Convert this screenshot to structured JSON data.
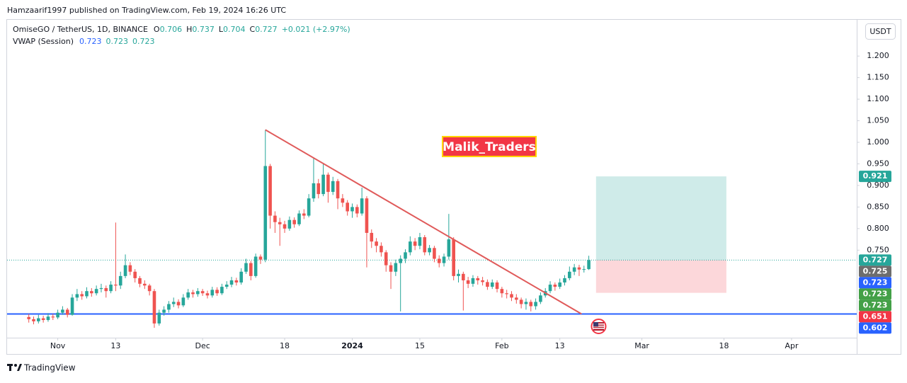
{
  "header": {
    "publisher": "Hamzaarif1997 published on TradingView.com, Feb 19, 2024 16:26 UTC",
    "symbol": "OmiseGO / TetherUS, 1D, BINANCE",
    "ohlc": [
      {
        "key": "O",
        "value": 0.706
      },
      {
        "key": "H",
        "value": 0.737
      },
      {
        "key": "L",
        "value": 0.704
      },
      {
        "key": "C",
        "value": 0.727
      }
    ],
    "change": "+0.021 (+2.97%)",
    "indicator": "VWAP (Session)",
    "indicator_values": [
      {
        "value": 0.723,
        "color": "#2962ff"
      },
      {
        "value": 0.723,
        "color": "#26a69a"
      },
      {
        "value": 0.723,
        "color": "#26a69a"
      }
    ],
    "currency": "USDT",
    "watermark": "Malik_Traders",
    "footer": "TradingView"
  },
  "chart_data": {
    "type": "candlestick",
    "up_color": "#26a69a",
    "down_color": "#ef5350",
    "xlim": [
      -4.5,
      171.5
    ],
    "xticks": [
      {
        "value": 6,
        "label": "Nov"
      },
      {
        "value": 18,
        "label": "13"
      },
      {
        "value": 36,
        "label": "Dec"
      },
      {
        "value": 53,
        "label": "18"
      },
      {
        "value": 67,
        "label": "2024"
      },
      {
        "value": 81,
        "label": "15"
      },
      {
        "value": 98,
        "label": "Feb"
      },
      {
        "value": 110,
        "label": "13"
      },
      {
        "value": 127,
        "label": "Mar"
      },
      {
        "value": 144,
        "label": "18"
      },
      {
        "value": 158,
        "label": "Apr"
      }
    ],
    "ylim": [
      0.547,
      1.284
    ],
    "yticks": [
      {
        "value": 0.75,
        "label": "0.750"
      },
      {
        "value": 0.8,
        "label": "0.800"
      },
      {
        "value": 0.85,
        "label": "0.850"
      },
      {
        "value": 0.9,
        "label": "0.900"
      },
      {
        "value": 0.95,
        "label": "0.950"
      },
      {
        "value": 1.0,
        "label": "1.000"
      },
      {
        "value": 1.05,
        "label": "1.050"
      },
      {
        "value": 1.1,
        "label": "1.100"
      },
      {
        "value": 1.15,
        "label": "1.150"
      },
      {
        "value": 1.2,
        "label": "1.200"
      }
    ],
    "open": [
      0.595,
      0.59,
      0.585,
      0.592,
      0.588,
      0.596,
      0.594,
      0.605,
      0.612,
      0.6,
      0.64,
      0.648,
      0.643,
      0.655,
      0.65,
      0.66,
      0.662,
      0.655,
      0.67,
      0.668,
      0.69,
      0.715,
      0.7,
      0.685,
      0.672,
      0.668,
      0.655,
      0.58,
      0.605,
      0.612,
      0.625,
      0.63,
      0.622,
      0.64,
      0.652,
      0.648,
      0.655,
      0.65,
      0.645,
      0.658,
      0.65,
      0.665,
      0.67,
      0.68,
      0.675,
      0.7,
      0.72,
      0.69,
      0.735,
      0.728,
      0.945,
      0.83,
      0.815,
      0.81,
      0.8,
      0.82,
      0.81,
      0.835,
      0.83,
      0.87,
      0.905,
      0.88,
      0.925,
      0.885,
      0.91,
      0.87,
      0.86,
      0.84,
      0.85,
      0.835,
      0.87,
      0.79,
      0.77,
      0.76,
      0.745,
      0.715,
      0.7,
      0.72,
      0.73,
      0.745,
      0.77,
      0.76,
      0.78,
      0.745,
      0.755,
      0.73,
      0.72,
      0.735,
      0.775,
      0.69,
      0.695,
      0.68,
      0.672,
      0.685,
      0.68,
      0.676,
      0.665,
      0.675,
      0.66,
      0.65,
      0.648,
      0.64,
      0.635,
      0.625,
      0.63,
      0.62,
      0.63,
      0.645,
      0.655,
      0.67,
      0.665,
      0.675,
      0.685,
      0.7,
      0.71,
      0.705,
      0.706
    ],
    "high": [
      0.602,
      0.596,
      0.6,
      0.598,
      0.604,
      0.602,
      0.612,
      0.62,
      0.616,
      0.648,
      0.66,
      0.655,
      0.664,
      0.662,
      0.668,
      0.672,
      0.668,
      0.678,
      0.814,
      0.7,
      0.74,
      0.722,
      0.706,
      0.69,
      0.68,
      0.672,
      0.66,
      0.612,
      0.62,
      0.632,
      0.64,
      0.636,
      0.648,
      0.66,
      0.658,
      0.662,
      0.66,
      0.656,
      0.665,
      0.664,
      0.672,
      0.678,
      0.688,
      0.686,
      0.708,
      0.73,
      0.725,
      0.742,
      0.74,
      1.029,
      0.95,
      0.84,
      0.825,
      0.818,
      0.828,
      0.826,
      0.842,
      0.845,
      0.88,
      0.963,
      0.915,
      0.95,
      0.93,
      0.92,
      0.915,
      0.88,
      0.866,
      0.858,
      0.856,
      0.895,
      0.875,
      0.798,
      0.778,
      0.768,
      0.75,
      0.722,
      0.728,
      0.738,
      0.752,
      0.782,
      0.778,
      0.79,
      0.785,
      0.762,
      0.76,
      0.738,
      0.742,
      0.834,
      0.78,
      0.705,
      0.7,
      0.688,
      0.692,
      0.69,
      0.688,
      0.682,
      0.682,
      0.68,
      0.665,
      0.658,
      0.655,
      0.648,
      0.64,
      0.638,
      0.635,
      0.638,
      0.652,
      0.662,
      0.678,
      0.675,
      0.684,
      0.692,
      0.712,
      0.718,
      0.716,
      0.714,
      0.737
    ],
    "low": [
      0.582,
      0.578,
      0.58,
      0.582,
      0.584,
      0.588,
      0.59,
      0.6,
      0.594,
      0.598,
      0.632,
      0.635,
      0.638,
      0.642,
      0.645,
      0.652,
      0.64,
      0.65,
      0.655,
      0.66,
      0.685,
      0.692,
      0.675,
      0.664,
      0.66,
      0.645,
      0.57,
      0.575,
      0.598,
      0.605,
      0.618,
      0.615,
      0.618,
      0.635,
      0.64,
      0.642,
      0.644,
      0.638,
      0.64,
      0.644,
      0.646,
      0.66,
      0.664,
      0.668,
      0.67,
      0.695,
      0.68,
      0.686,
      0.718,
      0.722,
      0.8,
      0.79,
      0.76,
      0.79,
      0.795,
      0.802,
      0.806,
      0.822,
      0.826,
      0.862,
      0.87,
      0.875,
      0.86,
      0.878,
      0.845,
      0.85,
      0.83,
      0.825,
      0.826,
      0.83,
      0.71,
      0.755,
      0.745,
      0.735,
      0.7,
      0.66,
      0.69,
      0.608,
      0.72,
      0.738,
      0.75,
      0.752,
      0.738,
      0.738,
      0.722,
      0.71,
      0.712,
      0.728,
      0.68,
      0.675,
      0.61,
      0.662,
      0.665,
      0.67,
      0.668,
      0.658,
      0.66,
      0.652,
      0.64,
      0.638,
      0.632,
      0.626,
      0.615,
      0.612,
      0.608,
      0.612,
      0.625,
      0.64,
      0.65,
      0.656,
      0.66,
      0.668,
      0.68,
      0.692,
      0.69,
      0.698,
      0.704
    ],
    "close": [
      0.59,
      0.585,
      0.592,
      0.588,
      0.596,
      0.594,
      0.605,
      0.612,
      0.6,
      0.64,
      0.648,
      0.643,
      0.655,
      0.65,
      0.66,
      0.662,
      0.655,
      0.67,
      0.668,
      0.69,
      0.715,
      0.7,
      0.685,
      0.672,
      0.668,
      0.655,
      0.58,
      0.605,
      0.612,
      0.625,
      0.63,
      0.622,
      0.64,
      0.652,
      0.648,
      0.655,
      0.65,
      0.645,
      0.658,
      0.65,
      0.665,
      0.67,
      0.68,
      0.675,
      0.7,
      0.72,
      0.69,
      0.735,
      0.728,
      0.945,
      0.83,
      0.815,
      0.81,
      0.8,
      0.82,
      0.81,
      0.835,
      0.83,
      0.87,
      0.905,
      0.88,
      0.925,
      0.885,
      0.91,
      0.87,
      0.86,
      0.84,
      0.85,
      0.835,
      0.87,
      0.79,
      0.77,
      0.76,
      0.745,
      0.715,
      0.7,
      0.72,
      0.73,
      0.745,
      0.77,
      0.76,
      0.78,
      0.745,
      0.755,
      0.73,
      0.72,
      0.735,
      0.775,
      0.69,
      0.695,
      0.68,
      0.672,
      0.685,
      0.68,
      0.676,
      0.665,
      0.675,
      0.66,
      0.65,
      0.648,
      0.64,
      0.635,
      0.625,
      0.63,
      0.62,
      0.63,
      0.645,
      0.655,
      0.67,
      0.665,
      0.675,
      0.685,
      0.7,
      0.71,
      0.705,
      0.706,
      0.727
    ],
    "trendline": {
      "x": [
        49,
        114.5
      ],
      "y": [
        1.029,
        0.602
      ],
      "color": "#e05a5a"
    },
    "hline": {
      "value": 0.602,
      "color": "#2962ff"
    },
    "position": {
      "x": [
        117.5,
        144.5
      ],
      "entry": 0.727,
      "target": 0.921,
      "stop": 0.651
    },
    "price_labels": [
      {
        "value": 0.921,
        "color": "#26a69a"
      },
      {
        "value": 0.727,
        "color": "#26a69a"
      },
      {
        "value": 0.725,
        "color": "#6d6d6d"
      },
      {
        "value": 0.723,
        "color": "#2962ff"
      },
      {
        "value": 0.723,
        "color": "#43a047"
      },
      {
        "value": 0.723,
        "color": "#43a047"
      },
      {
        "value": 0.651,
        "color": "#f23645"
      },
      {
        "value": 0.602,
        "color": "#2962ff"
      }
    ]
  }
}
